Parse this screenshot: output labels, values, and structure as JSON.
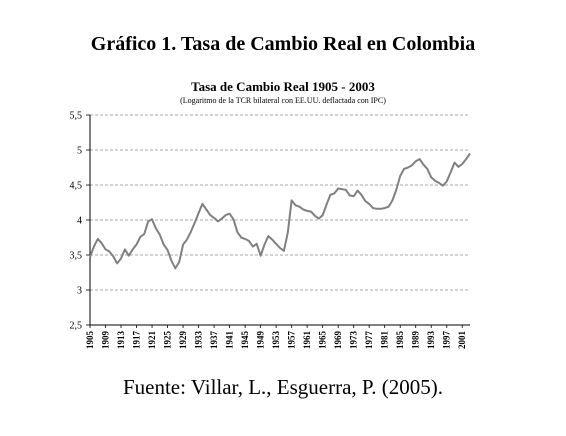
{
  "page": {
    "title": "Gráfico 1. Tasa de Cambio Real en Colombia",
    "source": "Fuente: Villar, L., Esguerra, P. (2005)."
  },
  "colors": {
    "line": "#808080",
    "grid": "#8c8c8c",
    "axis": "#000000"
  },
  "chart_data": {
    "type": "line",
    "title": "Tasa de Cambio Real 1905 - 2003",
    "subtitle": "(Logaritmo de la TCR bilateral con EE.UU. deflactada con IPC)",
    "xlabel": "",
    "ylabel": "",
    "xlim": [
      1905,
      2003
    ],
    "ylim": [
      2.5,
      5.5
    ],
    "y_ticks": [
      "2,5",
      "3",
      "3,5",
      "4",
      "4,5",
      "5",
      "5,5"
    ],
    "y_tick_values": [
      2.5,
      3,
      3.5,
      4,
      4.5,
      5,
      5.5
    ],
    "x_ticks": [
      "1905",
      "1909",
      "1913",
      "1917",
      "1921",
      "1925",
      "1929",
      "1933",
      "1937",
      "1941",
      "1945",
      "1949",
      "1953",
      "1957",
      "1961",
      "1965",
      "1969",
      "1973",
      "1977",
      "1981",
      "1985",
      "1989",
      "1993",
      "1997",
      "2001"
    ],
    "grid": "horizontal dashed",
    "legend": "none",
    "series": [
      {
        "x": [
          1905,
          1906,
          1907,
          1908,
          1909,
          1910,
          1911,
          1912,
          1913,
          1914,
          1915,
          1916,
          1917,
          1918,
          1919,
          1920,
          1921,
          1922,
          1923,
          1924,
          1925,
          1926,
          1927,
          1928,
          1929,
          1930,
          1931,
          1932,
          1933,
          1934,
          1935,
          1936,
          1937,
          1938,
          1939,
          1940,
          1941,
          1942,
          1943,
          1944,
          1945,
          1946,
          1947,
          1948,
          1949,
          1950,
          1951,
          1952,
          1953,
          1954,
          1955,
          1956,
          1957,
          1958,
          1959,
          1960,
          1961,
          1962,
          1963,
          1964,
          1965,
          1966,
          1967,
          1968,
          1969,
          1970,
          1971,
          1972,
          1973,
          1974,
          1975,
          1976,
          1977,
          1978,
          1979,
          1980,
          1981,
          1982,
          1983,
          1984,
          1985,
          1986,
          1987,
          1988,
          1989,
          1990,
          1991,
          1992,
          1993,
          1994,
          1995,
          1996,
          1997,
          1998,
          1999,
          2000,
          2001,
          2002,
          2003
        ],
        "y": [
          3.47,
          3.62,
          3.73,
          3.67,
          3.58,
          3.55,
          3.48,
          3.38,
          3.45,
          3.58,
          3.49,
          3.58,
          3.65,
          3.76,
          3.8,
          3.98,
          4.01,
          3.88,
          3.79,
          3.65,
          3.57,
          3.42,
          3.31,
          3.4,
          3.65,
          3.72,
          3.83,
          3.96,
          4.1,
          4.23,
          4.15,
          4.07,
          4.03,
          3.98,
          4.02,
          4.07,
          4.09,
          4.01,
          3.83,
          3.75,
          3.73,
          3.7,
          3.62,
          3.66,
          3.49,
          3.65,
          3.77,
          3.72,
          3.66,
          3.6,
          3.56,
          3.82,
          4.28,
          4.21,
          4.19,
          4.15,
          4.13,
          4.12,
          4.06,
          4.02,
          4.07,
          4.22,
          4.36,
          4.38,
          4.45,
          4.44,
          4.43,
          4.35,
          4.34,
          4.42,
          4.36,
          4.27,
          4.23,
          4.17,
          4.16,
          4.16,
          4.17,
          4.19,
          4.28,
          4.43,
          4.63,
          4.73,
          4.75,
          4.78,
          4.84,
          4.87,
          4.79,
          4.73,
          4.61,
          4.56,
          4.53,
          4.49,
          4.55,
          4.68,
          4.82,
          4.76,
          4.8,
          4.87,
          4.95
        ]
      }
    ]
  }
}
